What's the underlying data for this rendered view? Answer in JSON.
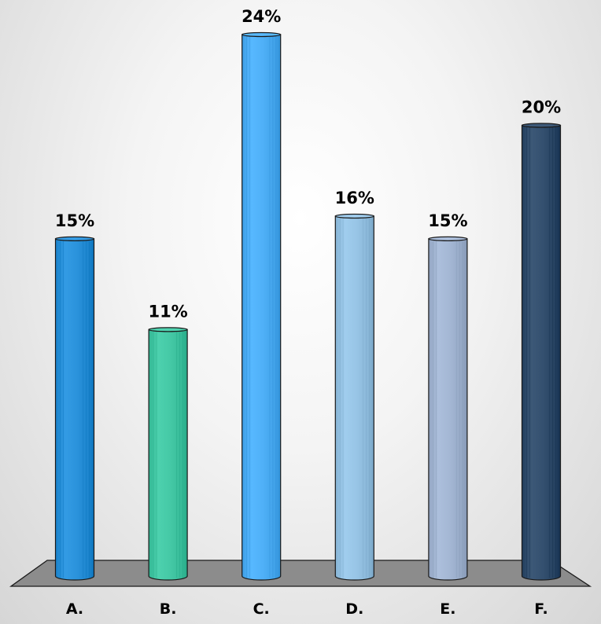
{
  "chart_data": {
    "type": "bar",
    "categories": [
      "A.",
      "B.",
      "C.",
      "D.",
      "E.",
      "F."
    ],
    "values": [
      15,
      11,
      24,
      16,
      15,
      20
    ],
    "value_labels": [
      "15%",
      "11%",
      "24%",
      "16%",
      "15%",
      "20%"
    ],
    "unit": "%",
    "title": "",
    "xlabel": "",
    "ylabel": "",
    "ylim": [
      0,
      24
    ],
    "grid": false,
    "legend": "none",
    "style": "3d-cylinder-bars-on-floor"
  },
  "colors": {
    "bars": [
      "#2b93dc",
      "#45c9a6",
      "#4fb0f7",
      "#98c5e6",
      "#a4b7d4",
      "#34506f"
    ],
    "floor": "#8c8c8c",
    "outline": "#1a1a1a"
  }
}
